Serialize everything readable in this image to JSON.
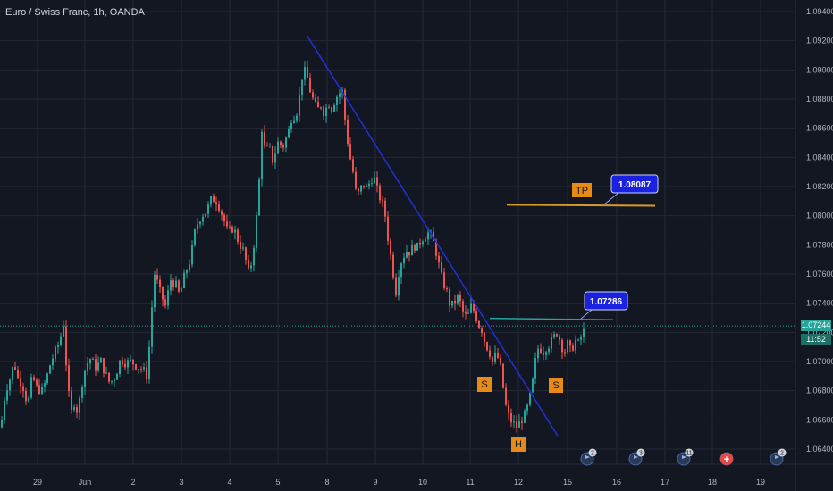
{
  "header": {
    "title": "Euro / Swiss Franc, 1h, OANDA"
  },
  "current": {
    "price_label": "1.07244",
    "countdown": "11:52"
  },
  "chart_data": {
    "type": "candlestick",
    "title": "Euro / Swiss Franc, 1h, OANDA",
    "x_ticks": [
      "29",
      "Jun",
      "2",
      "3",
      "4",
      "5",
      "8",
      "9",
      "10",
      "11",
      "12",
      "15",
      "16",
      "17",
      "18",
      "19"
    ],
    "y_ticks": [
      "1.09400",
      "1.09200",
      "1.09000",
      "1.08800",
      "1.08600",
      "1.08400",
      "1.08200",
      "1.08000",
      "1.07800",
      "1.07600",
      "1.07400",
      "1.07200",
      "1.07000",
      "1.06800",
      "1.06600",
      "1.06400"
    ],
    "ylim": [
      1.0632,
      1.0948
    ],
    "grid": true,
    "colors": {
      "up": "#26a69a",
      "down": "#ef5350",
      "trendline": "#2230d8",
      "tp_line": "#d89a2a",
      "neckline": "#26a69a",
      "label_box": "#e88b16",
      "callout": "#1a22e0",
      "background": "#131722"
    },
    "close_path": [
      [
        0,
        1.0655
      ],
      [
        5,
        1.068
      ],
      [
        10,
        1.0688
      ],
      [
        15,
        1.07
      ],
      [
        18,
        1.0689
      ],
      [
        24,
        1.0685
      ],
      [
        30,
        1.067
      ],
      [
        35,
        1.069
      ],
      [
        40,
        1.0682
      ],
      [
        46,
        1.068
      ],
      [
        50,
        1.0686
      ],
      [
        56,
        1.07
      ],
      [
        62,
        1.0708
      ],
      [
        66,
        1.0715
      ],
      [
        70,
        1.0726
      ],
      [
        74,
        1.069
      ],
      [
        78,
        1.0663
      ],
      [
        82,
        1.0672
      ],
      [
        86,
        1.0665
      ],
      [
        92,
        1.069
      ],
      [
        96,
        1.0698
      ],
      [
        100,
        1.0702
      ],
      [
        106,
        1.0696
      ],
      [
        112,
        1.07
      ],
      [
        118,
        1.069
      ],
      [
        122,
        1.0685
      ],
      [
        128,
        1.069
      ],
      [
        134,
        1.0702
      ],
      [
        140,
        1.0699
      ],
      [
        146,
        1.07
      ],
      [
        152,
        1.0697
      ],
      [
        158,
        1.0695
      ],
      [
        164,
        1.069
      ],
      [
        168,
        1.073
      ],
      [
        172,
        1.076
      ],
      [
        178,
        1.0748
      ],
      [
        184,
        1.0738
      ],
      [
        190,
        1.0756
      ],
      [
        196,
        1.0752
      ],
      [
        200,
        1.0745
      ],
      [
        206,
        1.076
      ],
      [
        212,
        1.077
      ],
      [
        218,
        1.0792
      ],
      [
        224,
        1.08
      ],
      [
        230,
        1.0803
      ],
      [
        236,
        1.0812
      ],
      [
        242,
        1.081
      ],
      [
        248,
        1.08
      ],
      [
        254,
        1.0788
      ],
      [
        260,
        1.0792
      ],
      [
        266,
        1.0782
      ],
      [
        272,
        1.0775
      ],
      [
        278,
        1.0758
      ],
      [
        284,
        1.0785
      ],
      [
        288,
        1.0812
      ],
      [
        292,
        1.086
      ],
      [
        296,
        1.0842
      ],
      [
        300,
        1.0848
      ],
      [
        304,
        1.0838
      ],
      [
        310,
        1.085
      ],
      [
        316,
        1.0848
      ],
      [
        322,
        1.0858
      ],
      [
        326,
        1.087
      ],
      [
        330,
        1.0868
      ],
      [
        334,
        1.0882
      ],
      [
        338,
        1.09
      ],
      [
        342,
        1.0897
      ],
      [
        346,
        1.0886
      ],
      [
        350,
        1.0878
      ],
      [
        354,
        1.0872
      ],
      [
        358,
        1.0876
      ],
      [
        362,
        1.087
      ],
      [
        366,
        1.0878
      ],
      [
        370,
        1.0874
      ],
      [
        374,
        1.088
      ],
      [
        378,
        1.0884
      ],
      [
        382,
        1.0885
      ],
      [
        386,
        1.086
      ],
      [
        390,
        1.0842
      ],
      [
        394,
        1.083
      ],
      [
        398,
        1.0812
      ],
      [
        402,
        1.0818
      ],
      [
        406,
        1.0822
      ],
      [
        410,
        1.0818
      ],
      [
        414,
        1.0826
      ],
      [
        418,
        1.0825
      ],
      [
        422,
        1.0815
      ],
      [
        426,
        1.081
      ],
      [
        430,
        1.08
      ],
      [
        434,
        1.078
      ],
      [
        438,
        1.0765
      ],
      [
        442,
        1.0748
      ],
      [
        446,
        1.0766
      ],
      [
        450,
        1.0772
      ],
      [
        454,
        1.0776
      ],
      [
        458,
        1.0775
      ],
      [
        462,
        1.078
      ],
      [
        466,
        1.0778
      ],
      [
        470,
        1.0784
      ],
      [
        474,
        1.0786
      ],
      [
        478,
        1.0788
      ],
      [
        482,
        1.0785
      ],
      [
        486,
        1.0778
      ],
      [
        490,
        1.0766
      ],
      [
        494,
        1.0755
      ],
      [
        498,
        1.075
      ],
      [
        502,
        1.074
      ],
      [
        506,
        1.0738
      ],
      [
        510,
        1.0745
      ],
      [
        514,
        1.074
      ],
      [
        518,
        1.0732
      ],
      [
        522,
        1.073
      ],
      [
        526,
        1.0738
      ],
      [
        530,
        1.0734
      ],
      [
        534,
        1.0726
      ],
      [
        538,
        1.0722
      ],
      [
        542,
        1.0712
      ],
      [
        546,
        1.0708
      ],
      [
        550,
        1.07
      ],
      [
        554,
        1.0705
      ],
      [
        558,
        1.07
      ],
      [
        562,
        1.0682
      ],
      [
        566,
        1.0665
      ],
      [
        570,
        1.066
      ],
      [
        574,
        1.0657
      ],
      [
        578,
        1.0655
      ],
      [
        582,
        1.066
      ],
      [
        586,
        1.0663
      ],
      [
        590,
        1.067
      ],
      [
        594,
        1.0682
      ],
      [
        598,
        1.07
      ],
      [
        602,
        1.0712
      ],
      [
        606,
        1.0706
      ],
      [
        610,
        1.071
      ],
      [
        614,
        1.0712
      ],
      [
        618,
        1.0716
      ],
      [
        622,
        1.072
      ],
      [
        626,
        1.0714
      ],
      [
        630,
        1.0706
      ],
      [
        634,
        1.0712
      ],
      [
        638,
        1.0706
      ],
      [
        642,
        1.0715
      ],
      [
        646,
        1.0712
      ],
      [
        650,
        1.0718
      ],
      [
        654,
        1.0724
      ]
    ],
    "trendline": {
      "start": [
        343,
        1.0924
      ],
      "end": [
        624,
        1.0649
      ]
    },
    "neckline": {
      "start": [
        548,
        1.07296
      ],
      "end": [
        686,
        1.07286
      ]
    },
    "tp_line": {
      "start": [
        567,
        1.08075
      ],
      "end": [
        733,
        1.08068
      ]
    },
    "current_price_line": 1.07244,
    "annotations": [
      {
        "label": "TP",
        "kind": "box"
      },
      {
        "label": "1.08087",
        "kind": "callout"
      },
      {
        "label": "1.07286",
        "kind": "callout"
      },
      {
        "label": "S",
        "kind": "box"
      },
      {
        "label": "S",
        "kind": "box"
      },
      {
        "label": "H",
        "kind": "box"
      }
    ],
    "events": [
      {
        "icon": "flag-icon",
        "count": "2"
      },
      {
        "icon": "flag-icon",
        "count": "3"
      },
      {
        "icon": "flag-icon",
        "count": "11"
      },
      {
        "icon": "plus-icon",
        "count": ""
      },
      {
        "icon": "flag-icon",
        "count": "2"
      }
    ]
  }
}
